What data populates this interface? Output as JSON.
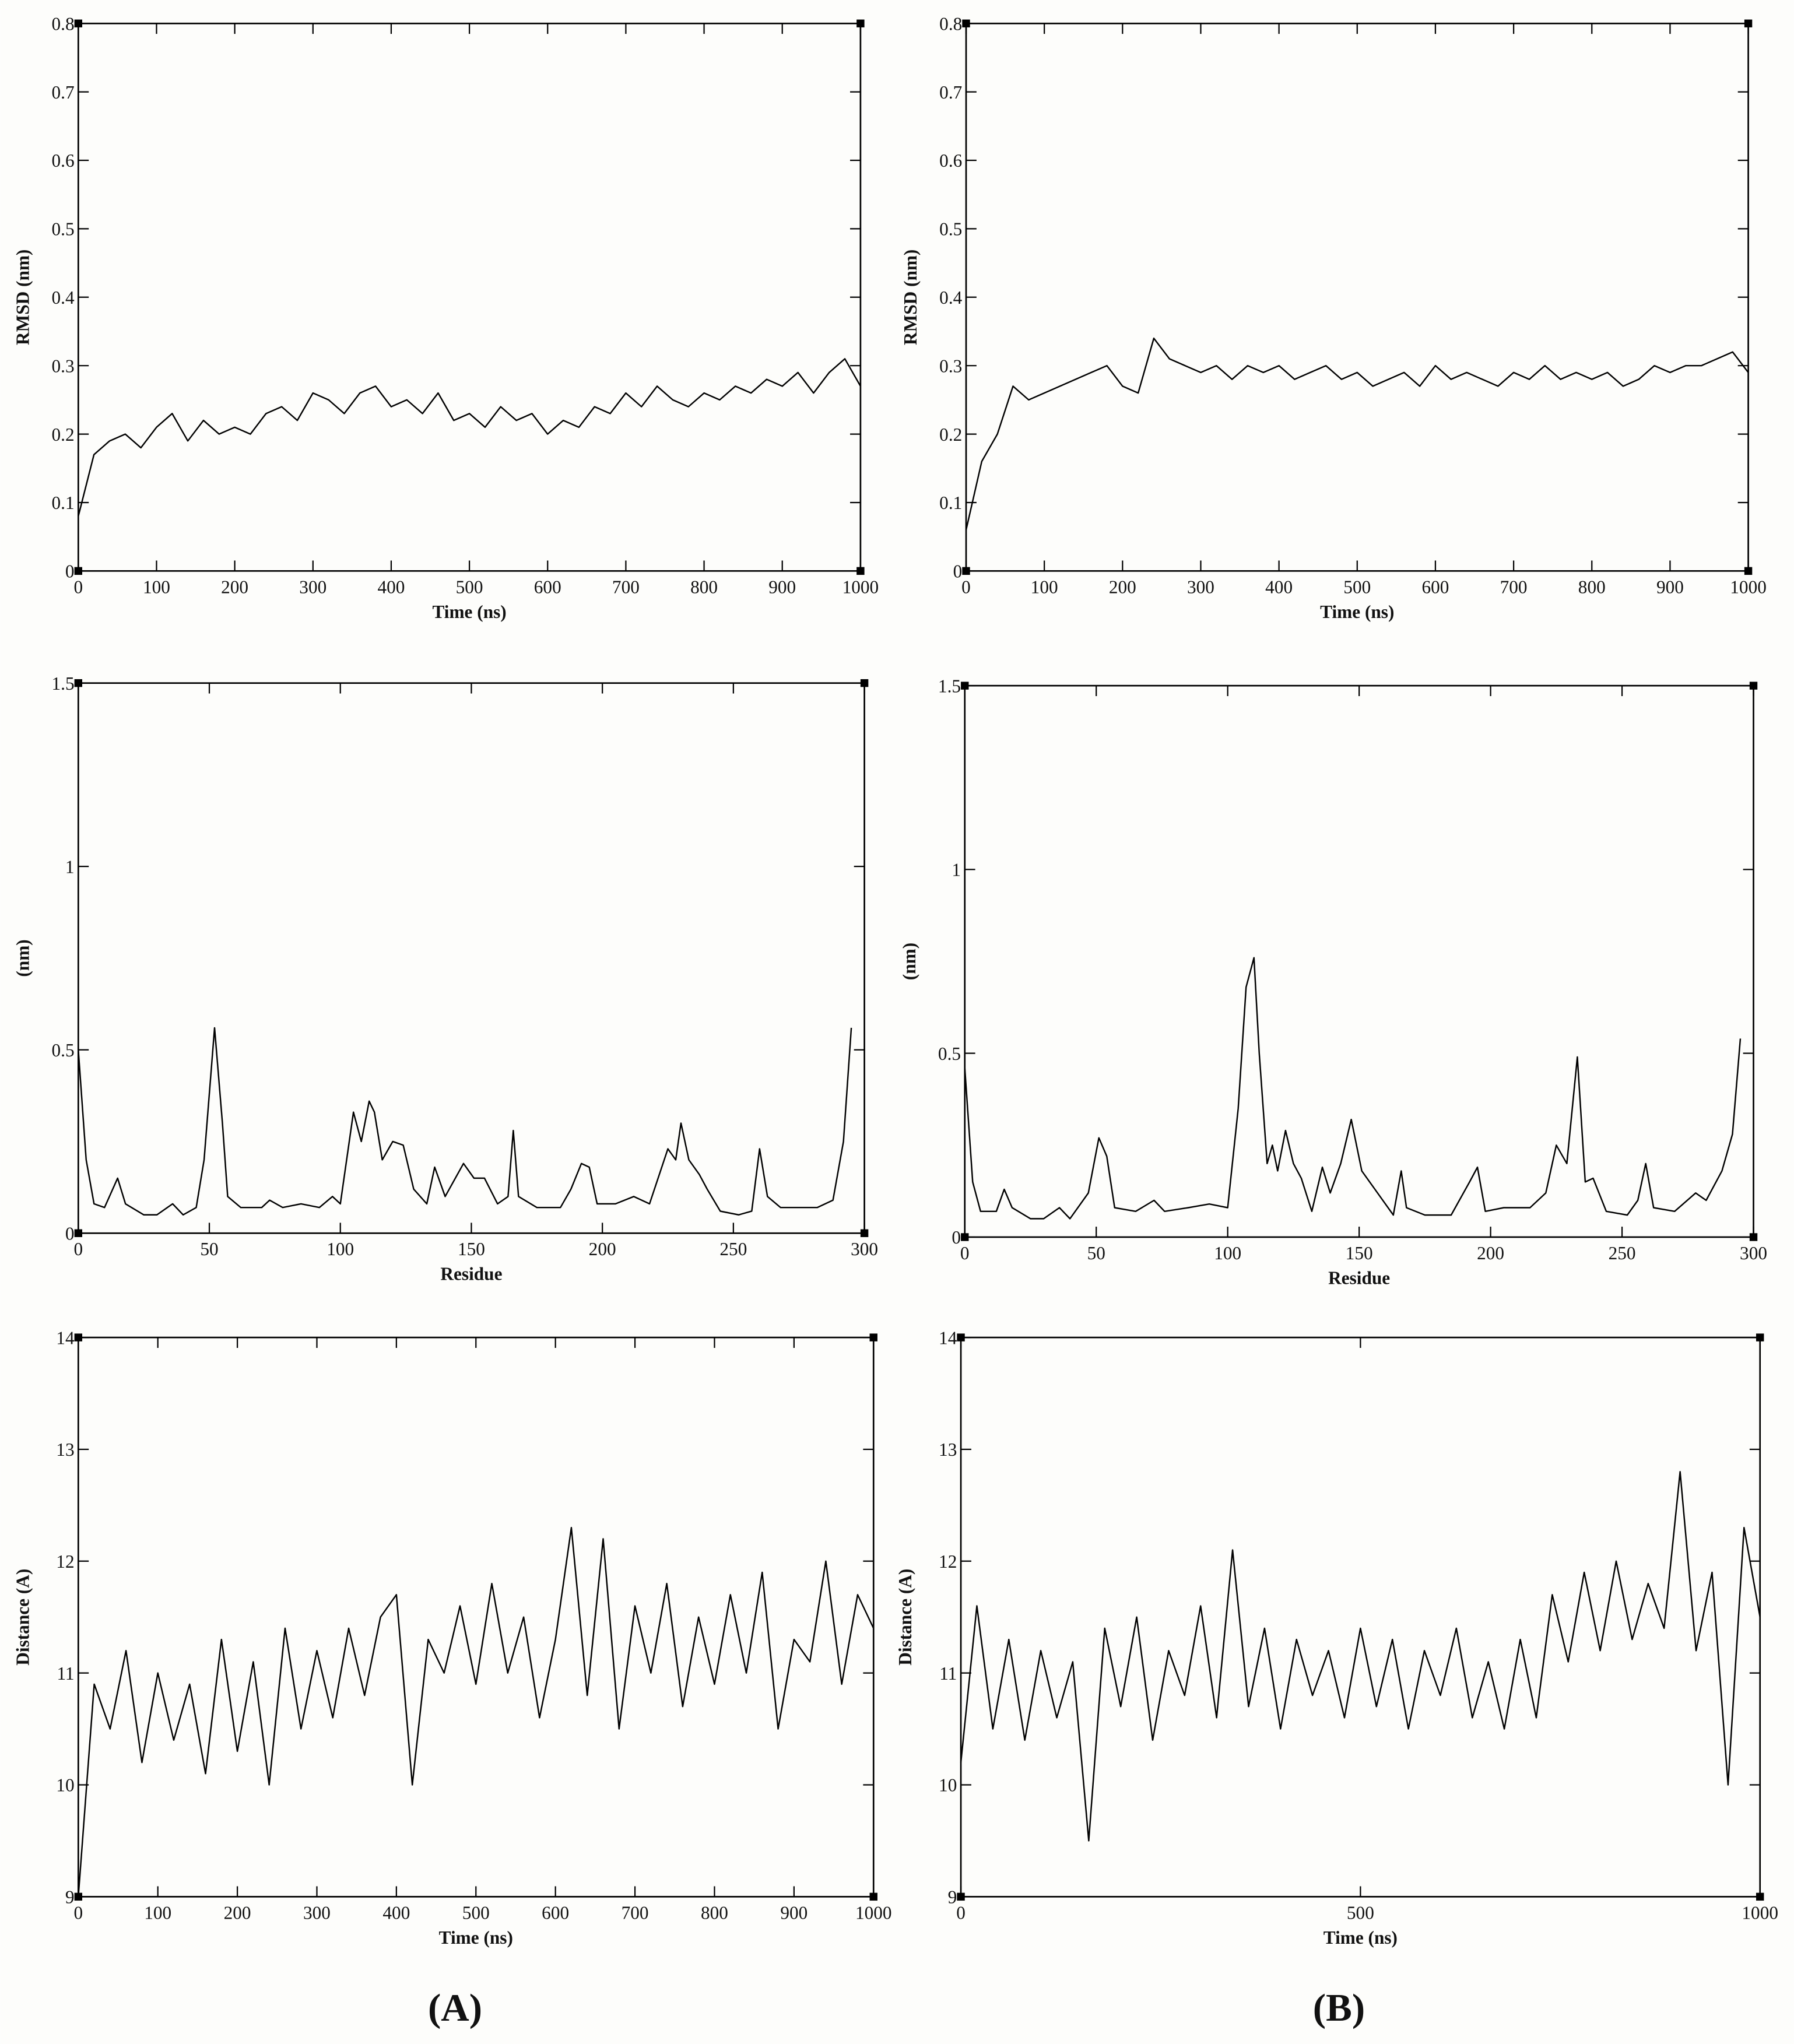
{
  "panel_labels": [
    "(A)",
    "(B)"
  ],
  "chart_data": [
    {
      "type": "line",
      "y_label": "RMSD (nm)",
      "x_label": "Time (ns)",
      "color": "#000000",
      "xlim": [
        0,
        1000
      ],
      "ylim": [
        0,
        0.8
      ],
      "xticks": [
        0,
        100,
        200,
        300,
        400,
        500,
        600,
        700,
        800,
        900,
        1000
      ],
      "yticks": [
        0,
        0.1,
        0.2,
        0.3,
        0.4,
        0.5,
        0.6,
        0.7,
        0.8
      ],
      "x": [
        0,
        20,
        40,
        60,
        80,
        100,
        120,
        140,
        160,
        180,
        200,
        220,
        240,
        260,
        280,
        300,
        320,
        340,
        360,
        380,
        400,
        420,
        440,
        460,
        480,
        500,
        520,
        540,
        560,
        580,
        600,
        620,
        640,
        660,
        680,
        700,
        720,
        740,
        760,
        780,
        800,
        820,
        840,
        860,
        880,
        900,
        920,
        940,
        960,
        980,
        1000
      ],
      "values": [
        0.08,
        0.17,
        0.19,
        0.2,
        0.18,
        0.21,
        0.23,
        0.19,
        0.22,
        0.2,
        0.21,
        0.2,
        0.23,
        0.24,
        0.22,
        0.26,
        0.25,
        0.23,
        0.26,
        0.27,
        0.24,
        0.25,
        0.23,
        0.26,
        0.22,
        0.23,
        0.21,
        0.24,
        0.22,
        0.23,
        0.2,
        0.22,
        0.21,
        0.24,
        0.23,
        0.26,
        0.24,
        0.27,
        0.25,
        0.24,
        0.26,
        0.25,
        0.27,
        0.26,
        0.28,
        0.27,
        0.29,
        0.26,
        0.29,
        0.31,
        0.27
      ]
    },
    {
      "type": "line",
      "y_label": "RMSD (nm)",
      "x_label": "Time (ns)",
      "color": "#000000",
      "xlim": [
        0,
        1000
      ],
      "ylim": [
        0,
        0.8
      ],
      "xticks": [
        0,
        100,
        200,
        300,
        400,
        500,
        600,
        700,
        800,
        900,
        1000
      ],
      "yticks": [
        0,
        0.1,
        0.2,
        0.3,
        0.4,
        0.5,
        0.6,
        0.7,
        0.8
      ],
      "x": [
        0,
        20,
        40,
        60,
        80,
        100,
        120,
        140,
        160,
        180,
        200,
        220,
        240,
        260,
        280,
        300,
        320,
        340,
        360,
        380,
        400,
        420,
        440,
        460,
        480,
        500,
        520,
        540,
        560,
        580,
        600,
        620,
        640,
        660,
        680,
        700,
        720,
        740,
        760,
        780,
        800,
        820,
        840,
        860,
        880,
        900,
        920,
        940,
        960,
        980,
        1000
      ],
      "values": [
        0.06,
        0.16,
        0.2,
        0.27,
        0.25,
        0.26,
        0.27,
        0.28,
        0.29,
        0.3,
        0.27,
        0.26,
        0.34,
        0.31,
        0.3,
        0.29,
        0.3,
        0.28,
        0.3,
        0.29,
        0.3,
        0.28,
        0.29,
        0.3,
        0.28,
        0.29,
        0.27,
        0.28,
        0.29,
        0.27,
        0.3,
        0.28,
        0.29,
        0.28,
        0.27,
        0.29,
        0.28,
        0.3,
        0.28,
        0.29,
        0.28,
        0.29,
        0.27,
        0.28,
        0.3,
        0.29,
        0.3,
        0.3,
        0.31,
        0.32,
        0.29
      ]
    },
    {
      "type": "line",
      "y_label": "(nm)",
      "x_label": "Residue",
      "color": "#000000",
      "xlim": [
        0,
        300
      ],
      "ylim": [
        0,
        1.5
      ],
      "xticks": [
        0,
        50,
        100,
        150,
        200,
        250,
        300
      ],
      "yticks": [
        0,
        0.5,
        1,
        1.5
      ],
      "x": [
        0,
        3,
        6,
        10,
        15,
        18,
        25,
        30,
        36,
        40,
        45,
        48,
        52,
        55,
        57,
        62,
        70,
        73,
        78,
        85,
        92,
        97,
        100,
        105,
        108,
        111,
        113,
        116,
        120,
        124,
        128,
        133,
        136,
        140,
        147,
        151,
        155,
        160,
        164,
        166,
        168,
        175,
        184,
        188,
        192,
        195,
        198,
        205,
        212,
        218,
        225,
        228,
        230,
        233,
        237,
        240,
        245,
        252,
        257,
        260,
        263,
        268,
        275,
        282,
        288,
        292,
        295
      ],
      "values": [
        0.5,
        0.2,
        0.08,
        0.07,
        0.15,
        0.08,
        0.05,
        0.05,
        0.08,
        0.05,
        0.07,
        0.2,
        0.56,
        0.3,
        0.1,
        0.07,
        0.07,
        0.09,
        0.07,
        0.08,
        0.07,
        0.1,
        0.08,
        0.33,
        0.25,
        0.36,
        0.33,
        0.2,
        0.25,
        0.24,
        0.12,
        0.08,
        0.18,
        0.1,
        0.19,
        0.15,
        0.15,
        0.08,
        0.1,
        0.28,
        0.1,
        0.07,
        0.07,
        0.12,
        0.19,
        0.18,
        0.08,
        0.08,
        0.1,
        0.08,
        0.23,
        0.2,
        0.3,
        0.2,
        0.16,
        0.12,
        0.06,
        0.05,
        0.06,
        0.23,
        0.1,
        0.07,
        0.07,
        0.07,
        0.09,
        0.25,
        0.56
      ]
    },
    {
      "type": "line",
      "y_label": "(nm)",
      "x_label": "Residue",
      "color": "#000000",
      "xlim": [
        0,
        300
      ],
      "ylim": [
        0,
        1.5
      ],
      "xticks": [
        0,
        50,
        100,
        150,
        200,
        250,
        300
      ],
      "yticks": [
        0,
        0.5,
        1,
        1.5
      ],
      "x": [
        0,
        3,
        6,
        12,
        15,
        18,
        25,
        30,
        36,
        40,
        47,
        51,
        54,
        57,
        65,
        72,
        76,
        85,
        93,
        100,
        104,
        107,
        110,
        112,
        115,
        117,
        119,
        122,
        125,
        128,
        132,
        136,
        139,
        143,
        147,
        151,
        156,
        163,
        166,
        168,
        175,
        185,
        192,
        195,
        198,
        205,
        215,
        221,
        225,
        229,
        233,
        236,
        239,
        244,
        252,
        256,
        259,
        262,
        270,
        278,
        282,
        288,
        292,
        295
      ],
      "values": [
        0.46,
        0.15,
        0.07,
        0.07,
        0.13,
        0.08,
        0.05,
        0.05,
        0.08,
        0.05,
        0.12,
        0.27,
        0.22,
        0.08,
        0.07,
        0.1,
        0.07,
        0.08,
        0.09,
        0.08,
        0.35,
        0.68,
        0.76,
        0.5,
        0.2,
        0.25,
        0.18,
        0.29,
        0.2,
        0.16,
        0.07,
        0.19,
        0.12,
        0.2,
        0.32,
        0.18,
        0.13,
        0.06,
        0.18,
        0.08,
        0.06,
        0.06,
        0.15,
        0.19,
        0.07,
        0.08,
        0.08,
        0.12,
        0.25,
        0.2,
        0.49,
        0.15,
        0.16,
        0.07,
        0.06,
        0.1,
        0.2,
        0.08,
        0.07,
        0.12,
        0.1,
        0.18,
        0.28,
        0.54
      ]
    },
    {
      "type": "line",
      "y_label": "Distance (A)",
      "x_label": "Time (ns)",
      "color": "#000000",
      "xlim": [
        0,
        1000
      ],
      "ylim": [
        9,
        14
      ],
      "xticks": [
        0,
        100,
        200,
        300,
        400,
        500,
        600,
        700,
        800,
        900,
        1000
      ],
      "yticks": [
        9,
        10,
        11,
        12,
        13,
        14
      ],
      "x": [
        0,
        20,
        40,
        60,
        80,
        100,
        120,
        140,
        160,
        180,
        200,
        220,
        240,
        260,
        280,
        300,
        320,
        340,
        360,
        380,
        400,
        420,
        440,
        460,
        480,
        500,
        520,
        540,
        560,
        580,
        600,
        620,
        640,
        660,
        680,
        700,
        720,
        740,
        760,
        780,
        800,
        820,
        840,
        860,
        880,
        900,
        920,
        940,
        960,
        980,
        1000
      ],
      "values": [
        9.0,
        10.9,
        10.5,
        11.2,
        10.2,
        11.0,
        10.4,
        10.9,
        10.1,
        11.3,
        10.3,
        11.1,
        10.0,
        11.4,
        10.5,
        11.2,
        10.6,
        11.4,
        10.8,
        11.5,
        11.7,
        10.0,
        11.3,
        11.0,
        11.6,
        10.9,
        11.8,
        11.0,
        11.5,
        10.6,
        11.3,
        12.3,
        10.8,
        12.2,
        10.5,
        11.6,
        11.0,
        11.8,
        10.7,
        11.5,
        10.9,
        11.7,
        11.0,
        11.9,
        10.5,
        11.3,
        11.1,
        12.0,
        10.9,
        11.7,
        11.4
      ]
    },
    {
      "type": "line",
      "y_label": "Distance (A)",
      "x_label": "Time (ns)",
      "color": "#000000",
      "xlim": [
        0,
        1000
      ],
      "ylim": [
        9,
        14
      ],
      "xticks": [
        0,
        500,
        1000
      ],
      "yticks": [
        9,
        10,
        11,
        12,
        13,
        14
      ],
      "x": [
        0,
        20,
        40,
        60,
        80,
        100,
        120,
        140,
        160,
        180,
        200,
        220,
        240,
        260,
        280,
        300,
        320,
        340,
        360,
        380,
        400,
        420,
        440,
        460,
        480,
        500,
        520,
        540,
        560,
        580,
        600,
        620,
        640,
        660,
        680,
        700,
        720,
        740,
        760,
        780,
        800,
        820,
        840,
        860,
        880,
        900,
        920,
        940,
        960,
        980,
        1000
      ],
      "values": [
        10.2,
        11.6,
        10.5,
        11.3,
        10.4,
        11.2,
        10.6,
        11.1,
        9.5,
        11.4,
        10.7,
        11.5,
        10.4,
        11.2,
        10.8,
        11.6,
        10.6,
        12.1,
        10.7,
        11.4,
        10.5,
        11.3,
        10.8,
        11.2,
        10.6,
        11.4,
        10.7,
        11.3,
        10.5,
        11.2,
        10.8,
        11.4,
        10.6,
        11.1,
        10.5,
        11.3,
        10.6,
        11.7,
        11.1,
        11.9,
        11.2,
        12.0,
        11.3,
        11.8,
        11.4,
        12.8,
        11.2,
        11.9,
        10.0,
        12.3,
        11.5
      ]
    }
  ]
}
